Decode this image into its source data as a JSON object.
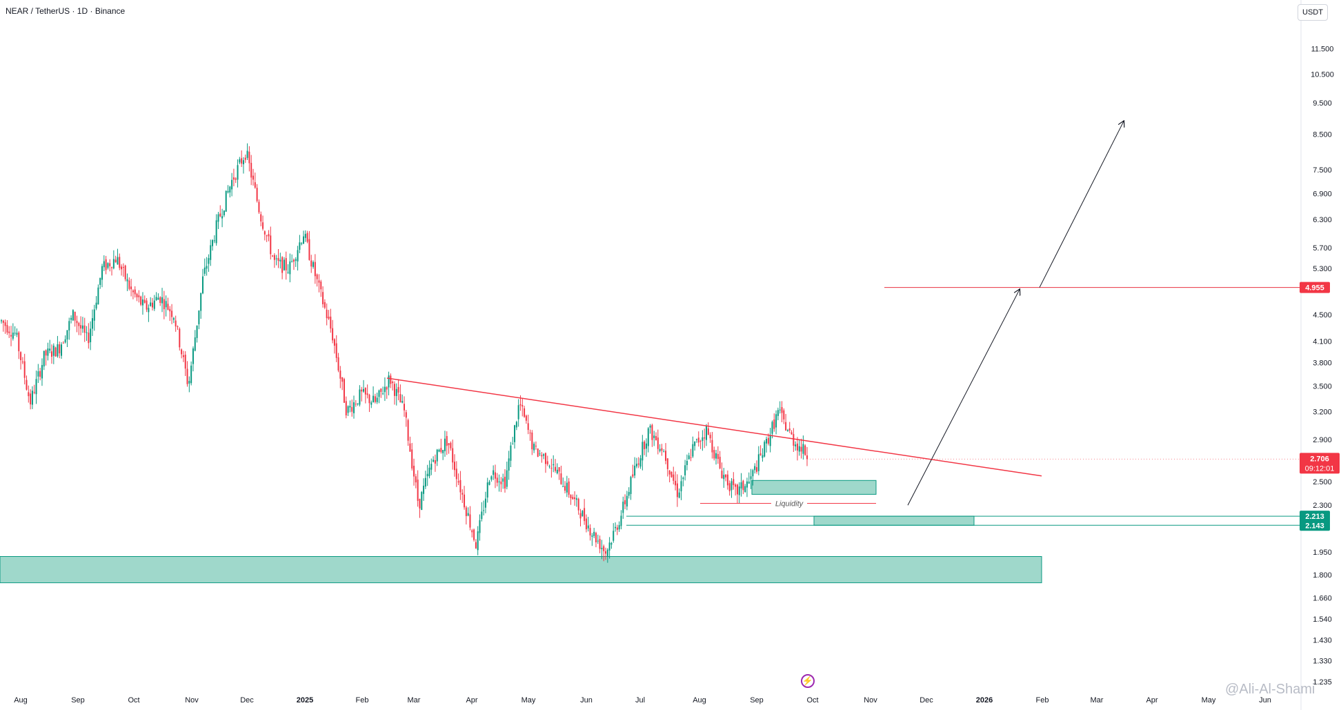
{
  "header": {
    "symbol_title": "NEAR / TetherUS · 1D · Binance",
    "currency": "USDT"
  },
  "watermark": "@Ali-Al-Shami",
  "colors": {
    "up": "#089981",
    "down": "#f23645",
    "zone_fill": "#9fd8cb",
    "zone_border": "#089981",
    "trendline": "#f23645",
    "price_label": "#f23645",
    "support_label": "#089981",
    "arrow": "#131722"
  },
  "chart_data": {
    "type": "candlestick",
    "y_scale": "log",
    "ylim": [
      1.22,
      12.2
    ],
    "y_ticks": [
      "11.500",
      "10.500",
      "9.500",
      "8.500",
      "7.500",
      "6.900",
      "6.300",
      "5.700",
      "5.300",
      "4.500",
      "4.100",
      "3.800",
      "3.500",
      "3.200",
      "2.900",
      "2.500",
      "2.300",
      "1.950",
      "1.800",
      "1.660",
      "1.540",
      "1.430",
      "1.330",
      "1.235"
    ],
    "x_ticks": [
      "Aug",
      "Sep",
      "Oct",
      "Nov",
      "Dec",
      "2025",
      "Feb",
      "Mar",
      "Apr",
      "May",
      "Jun",
      "Jul",
      "Aug",
      "Sep",
      "Oct",
      "Nov",
      "Dec",
      "2026",
      "Feb",
      "Mar",
      "Apr",
      "May",
      "Jun"
    ],
    "x_ticks_bold": [
      "2025",
      "2026"
    ],
    "price_path": [
      [
        "Aug",
        4.4
      ],
      [
        "Aug",
        4.2
      ],
      [
        "Aug",
        3.3
      ],
      [
        "Aug",
        3.9
      ],
      [
        "Sep",
        4.0
      ],
      [
        "Sep",
        4.5
      ],
      [
        "Sep",
        4.1
      ],
      [
        "Sep",
        5.3
      ],
      [
        "Oct",
        5.5
      ],
      [
        "Oct",
        4.9
      ],
      [
        "Oct",
        4.6
      ],
      [
        "Oct",
        4.8
      ],
      [
        "Nov",
        4.5
      ],
      [
        "Nov",
        3.5
      ],
      [
        "Nov",
        5.1
      ],
      [
        "Nov",
        6.2
      ],
      [
        "Dec",
        7.2
      ],
      [
        "Dec",
        8.0
      ],
      [
        "Dec",
        6.4
      ],
      [
        "Dec",
        5.4
      ],
      [
        "2025",
        5.3
      ],
      [
        "2025",
        6.0
      ],
      [
        "2025",
        5.0
      ],
      [
        "2025",
        4.2
      ],
      [
        "Feb",
        3.2
      ],
      [
        "Feb",
        3.4
      ],
      [
        "Feb",
        3.3
      ],
      [
        "Mar",
        3.6
      ],
      [
        "Mar",
        3.2
      ],
      [
        "Mar",
        2.3
      ],
      [
        "Mar",
        2.7
      ],
      [
        "Apr",
        2.9
      ],
      [
        "Apr",
        2.4
      ],
      [
        "Apr",
        2.0
      ],
      [
        "Apr",
        2.6
      ],
      [
        "May",
        2.5
      ],
      [
        "May",
        3.3
      ],
      [
        "May",
        2.8
      ],
      [
        "May",
        2.7
      ],
      [
        "Jun",
        2.5
      ],
      [
        "Jun",
        2.3
      ],
      [
        "Jun",
        2.1
      ],
      [
        "Jun",
        1.95
      ],
      [
        "Jul",
        2.2
      ],
      [
        "Jul",
        2.6
      ],
      [
        "Jul",
        3.0
      ],
      [
        "Jul",
        2.8
      ],
      [
        "Aug",
        2.4
      ],
      [
        "Aug",
        2.8
      ],
      [
        "Aug",
        3.0
      ],
      [
        "Aug",
        2.6
      ],
      [
        "Sep",
        2.4
      ],
      [
        "Sep",
        2.5
      ],
      [
        "Sep",
        2.8
      ],
      [
        "Sep",
        3.2
      ],
      [
        "Sep",
        2.9
      ],
      [
        "Sep",
        2.75
      ]
    ],
    "current_price": "2.706",
    "countdown": "09:12:01",
    "horizontal_levels": [
      {
        "value": 4.955,
        "label": "4.955"
      },
      {
        "value": 2.213,
        "label": "2.213"
      },
      {
        "value": 2.143,
        "label": "2.143"
      }
    ],
    "zones": [
      {
        "from": "Aug",
        "to": "Feb",
        "low": 1.75,
        "high": 1.92
      },
      {
        "from": "Sep",
        "to": "Nov",
        "low": 2.39,
        "high": 2.51
      },
      {
        "from": "Oct",
        "to": "Dec",
        "low": 2.143,
        "high": 2.213
      }
    ],
    "liquidity_label": "Liquidity",
    "liquidity_level": 2.315,
    "trendline": {
      "from": [
        "Feb",
        3.6
      ],
      "to": [
        "Feb",
        2.55
      ]
    },
    "projection": [
      [
        2.3
      ],
      [
        4.955
      ],
      [
        4.955
      ],
      [
        8.9
      ]
    ]
  }
}
